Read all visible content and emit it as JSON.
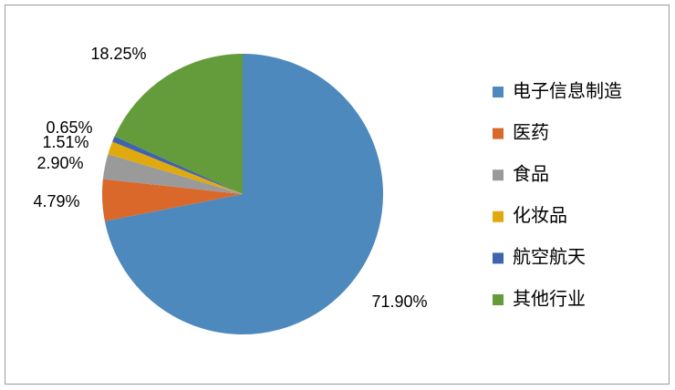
{
  "chart_data": {
    "type": "pie",
    "categories": [
      "电子信息制造",
      "医药",
      "食品",
      "化妆品",
      "航空航天",
      "其他行业"
    ],
    "values": [
      71.9,
      4.79,
      2.9,
      1.51,
      0.65,
      18.25
    ],
    "value_labels": [
      "71.90%",
      "4.79%",
      "2.90%",
      "1.51%",
      "0.65%",
      "18.25%"
    ],
    "colors": [
      "#4e89be",
      "#d9682a",
      "#9a9a9a",
      "#e0aa0f",
      "#3e64ad",
      "#659c3b"
    ],
    "legend": "right"
  }
}
